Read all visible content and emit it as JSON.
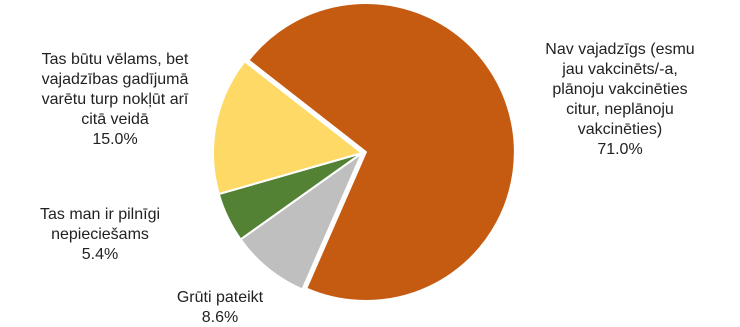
{
  "chart_data": {
    "type": "pie",
    "categories": [
      "Nav vajadzīgs (esmu\njau vakcinēts/-a,\nplānoju vakcinēties\ncitur, neplānoju\nvakcinēties)",
      "Grūti pateikt",
      "Tas man ir pilnīgi\nnepieciešams",
      "Tas būtu vēlams, bet\nvajadzības gadījumā\nvarētu turp nokļūt arī\ncitā veidā"
    ],
    "values": [
      71.0,
      8.6,
      5.4,
      15.0
    ],
    "value_labels": [
      "71.0%",
      "8.6%",
      "5.4%",
      "15.0%"
    ],
    "colors": [
      "#c55a11",
      "#bfbfbf",
      "#548235",
      "#ffd966"
    ]
  }
}
